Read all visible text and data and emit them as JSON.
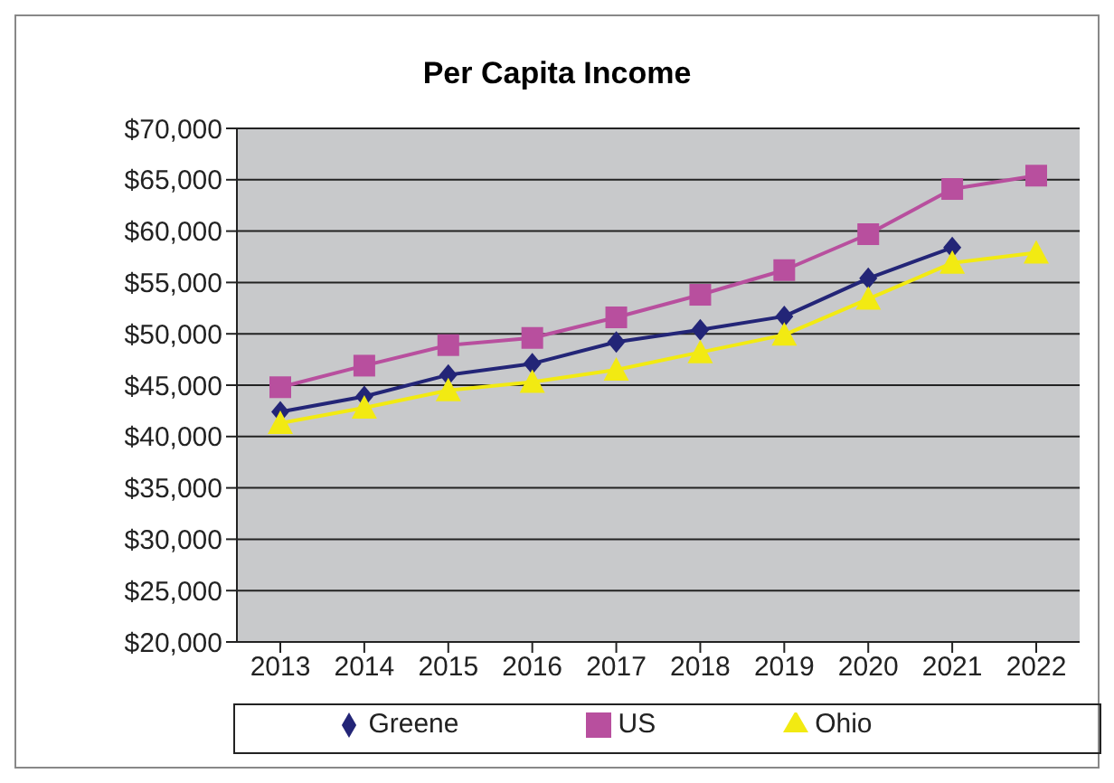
{
  "chart_data": {
    "type": "line",
    "title": "Per Capita Income",
    "categories": [
      "2013",
      "2014",
      "2015",
      "2016",
      "2017",
      "2018",
      "2019",
      "2020",
      "2021",
      "2022"
    ],
    "series": [
      {
        "name": "Greene",
        "color": "#232577",
        "marker": "diamond",
        "values": [
          42400,
          43900,
          46000,
          47100,
          49200,
          50400,
          51700,
          55400,
          58400,
          null
        ]
      },
      {
        "name": "US",
        "color": "#b84f9e",
        "marker": "square",
        "values": [
          44800,
          46900,
          48900,
          49600,
          51600,
          53800,
          56200,
          59700,
          64100,
          65400
        ]
      },
      {
        "name": "Ohio",
        "color": "#f2ea12",
        "marker": "triangle",
        "values": [
          41300,
          42800,
          44500,
          45300,
          46500,
          48200,
          49900,
          53400,
          56900,
          57900
        ]
      }
    ],
    "ylim": [
      20000,
      70000
    ],
    "yticks": [
      {
        "value": 20000,
        "label": "$20,000"
      },
      {
        "value": 25000,
        "label": "$25,000"
      },
      {
        "value": 30000,
        "label": "$30,000"
      },
      {
        "value": 35000,
        "label": "$35,000"
      },
      {
        "value": 40000,
        "label": "$40,000"
      },
      {
        "value": 45000,
        "label": "$45,000"
      },
      {
        "value": 50000,
        "label": "$50,000"
      },
      {
        "value": 55000,
        "label": "$55,000"
      },
      {
        "value": 60000,
        "label": "$60,000"
      },
      {
        "value": 65000,
        "label": "$65,000"
      },
      {
        "value": 70000,
        "label": "$70,000"
      }
    ],
    "grid": "y",
    "legend": "bottom"
  }
}
